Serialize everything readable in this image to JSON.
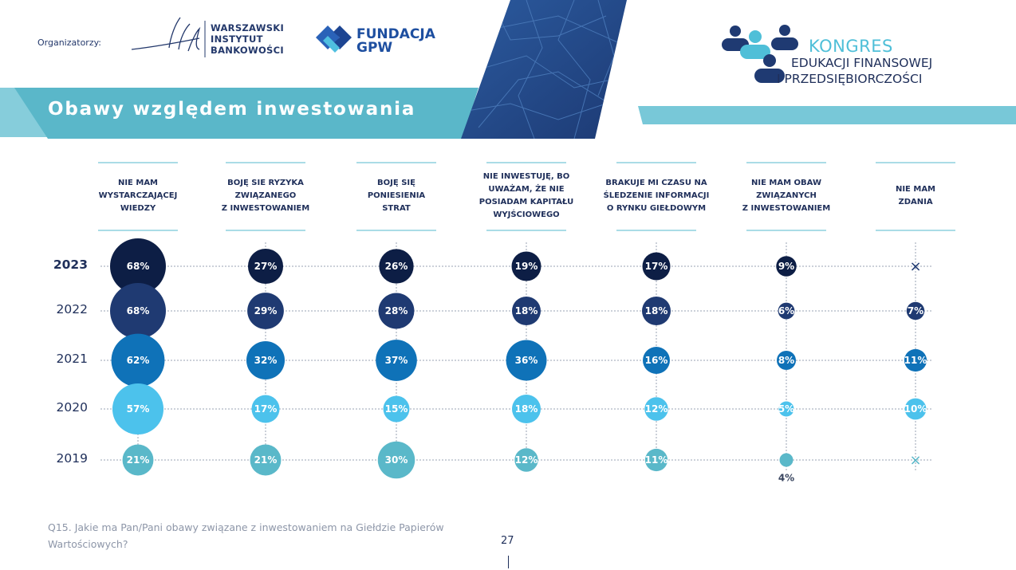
{
  "header": {
    "organizers_label": "Organizatorzy:",
    "wib_lines": [
      "WARSZAWSKI",
      "INSTYTUT",
      "BANKOWOŚCI"
    ],
    "gpw_lines": [
      "FUNDACJA",
      "GPW"
    ],
    "kongres_lines": [
      "KONGRES",
      "EDUKACJI FINANSOWEJ",
      "I PRZEDSIĘBIORCZOŚCI"
    ]
  },
  "banner": {
    "title": "Obawy względem inwestowania"
  },
  "colors": {
    "2023": "#0d1e45",
    "2022": "#1f3a72",
    "2021": "#0f72b8",
    "2020": "#4cc2ec",
    "2019": "#5ab8c9",
    "accent": "#78c8d8",
    "text": "#1f2f5a"
  },
  "chart_data": {
    "type": "bubble",
    "categories": [
      [
        "NIE MAM",
        "WYSTARCZAJĄCEJ",
        "WIEDZY"
      ],
      [
        "BOJĘ SIE RYZYKA",
        "ZWIĄZANEGO",
        "Z INWESTOWANIEM"
      ],
      [
        "BOJĘ SIĘ",
        "PONIESIENIA",
        "STRAT"
      ],
      [
        "NIE INWESTUJĘ, BO",
        "UWAŻAM, ŻE NIE",
        "POSIADAM KAPITAŁU",
        "WYJŚCIOWEGO"
      ],
      [
        "BRAKUJE MI CZASU NA",
        "ŚLEDZENIE INFORMACJI",
        "O RYNKU GIEŁDOWYM"
      ],
      [
        "NIE MAM OBAW",
        "ZWIĄZANYCH",
        "Z INWESTOWANIEM"
      ],
      [
        "NIE MAM",
        "ZDANIA"
      ]
    ],
    "series": [
      {
        "name": "2023",
        "values": [
          68,
          27,
          26,
          19,
          17,
          9,
          null
        ]
      },
      {
        "name": "2022",
        "values": [
          68,
          29,
          28,
          18,
          18,
          6,
          7
        ]
      },
      {
        "name": "2021",
        "values": [
          62,
          32,
          37,
          36,
          16,
          8,
          11
        ]
      },
      {
        "name": "2020",
        "values": [
          57,
          17,
          15,
          18,
          12,
          5,
          10
        ]
      },
      {
        "name": "2019",
        "values": [
          21,
          21,
          30,
          12,
          11,
          4,
          null
        ]
      }
    ],
    "unit": "%",
    "missing_marker": "×"
  },
  "footer": {
    "question": "Q15. Jakie ma Pan/Pani obawy związane z inwestowaniem na Giełdzie Papierów Wartościowych?",
    "page_number": "27"
  }
}
